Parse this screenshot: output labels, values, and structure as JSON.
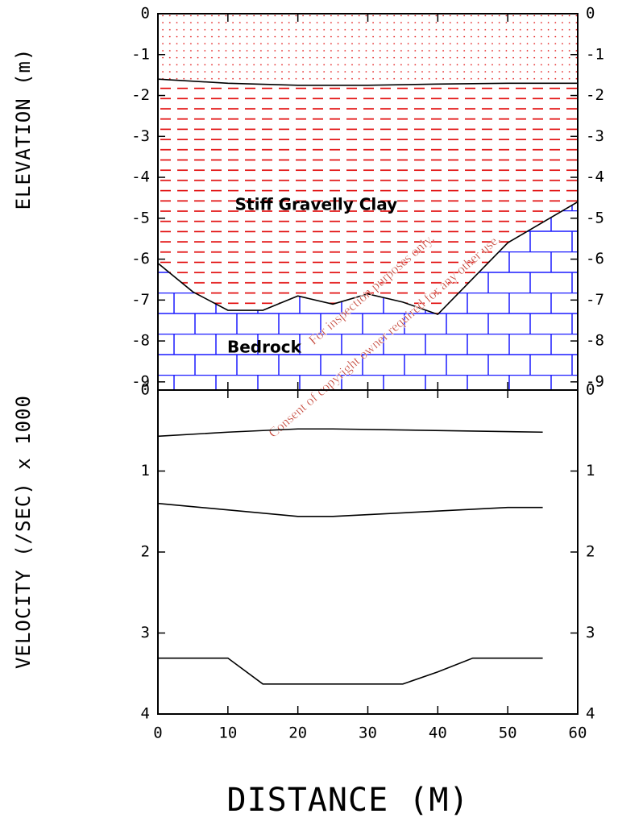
{
  "chart_data": [
    {
      "type": "layers",
      "y_label": "ELEVATION (m)",
      "xlim": [
        0,
        60
      ],
      "xticks": [
        0,
        10,
        20,
        30,
        40,
        50,
        60
      ],
      "ylim": [
        -9.2,
        0
      ],
      "yticks": [
        0,
        -1,
        -2,
        -3,
        -4,
        -5,
        -6,
        -7,
        -8,
        -9
      ],
      "series": [
        {
          "color": "#000000",
          "x": [
            0,
            10,
            20,
            30,
            40,
            50,
            60
          ],
          "values": [
            -1.6,
            -1.7,
            -1.75,
            -1.75,
            -1.72,
            -1.7,
            -1.7
          ]
        },
        {
          "color": "#000000",
          "x": [
            0,
            5,
            10,
            15,
            20,
            25,
            30,
            35,
            40,
            50,
            60
          ],
          "values": [
            -6.1,
            -6.8,
            -7.25,
            -7.25,
            -6.9,
            -7.1,
            -6.85,
            -7.05,
            -7.35,
            -5.6,
            -4.6
          ]
        }
      ],
      "annotations": [
        "Stiff Gravelly Clay",
        "Bedrock"
      ],
      "watermark": [
        "For inspection purposes only.",
        "Consent of copyright owner required for any other use."
      ]
    },
    {
      "type": "line",
      "y_label": "VELOCITY (/SEC) x 1000",
      "x_label": "DISTANCE (M)",
      "xlim": [
        0,
        60
      ],
      "xticks": [
        0,
        10,
        20,
        30,
        40,
        50,
        60
      ],
      "ylim": [
        4,
        0
      ],
      "yticks": [
        0,
        1,
        2,
        3,
        4
      ],
      "series": [
        {
          "color": "#000000",
          "x": [
            0,
            10,
            20,
            25,
            55
          ],
          "values": [
            0.57,
            0.52,
            0.48,
            0.48,
            0.52
          ]
        },
        {
          "color": "#000000",
          "x": [
            0,
            20,
            25,
            50,
            55
          ],
          "values": [
            1.4,
            1.56,
            1.56,
            1.45,
            1.45
          ]
        },
        {
          "color": "#000000",
          "x": [
            0,
            10,
            15,
            35,
            40,
            45,
            55
          ],
          "values": [
            3.31,
            3.31,
            3.63,
            3.63,
            3.48,
            3.31,
            3.31
          ]
        }
      ]
    }
  ]
}
